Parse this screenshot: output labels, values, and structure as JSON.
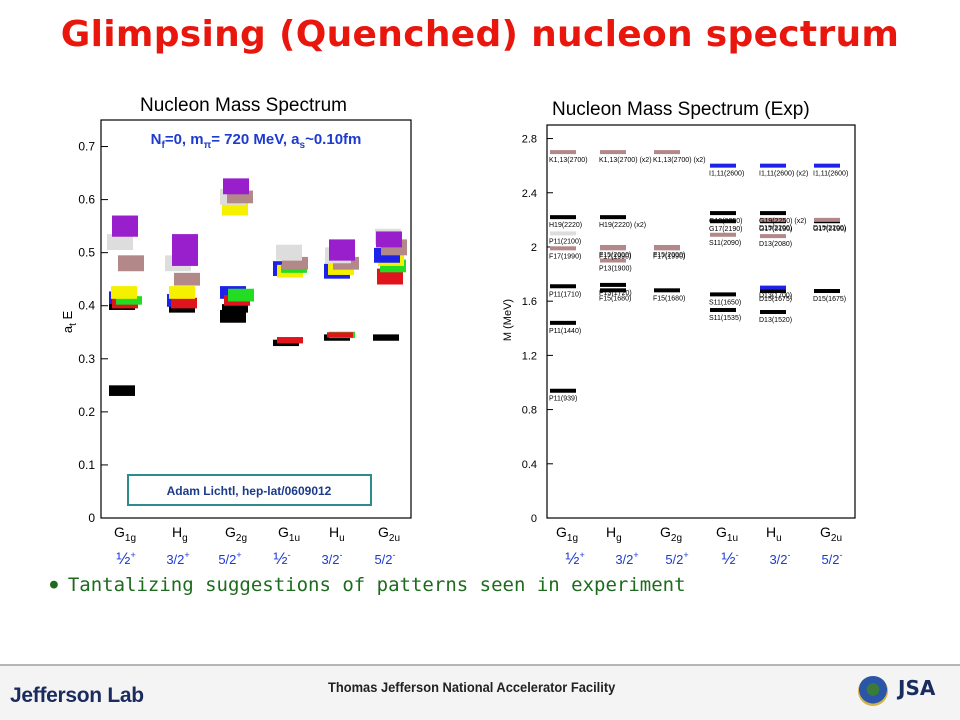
{
  "slide": {
    "title": "Glimpsing (Quenched) nucleon spectrum",
    "bullet": "Tantalizing suggestions of patterns seen in experiment"
  },
  "footer": {
    "lab_name": "Jefferson Lab",
    "facility_name": "Thomas Jefferson National Accelerator Facility",
    "logo_text": "JSA",
    "icons": [
      "doe-seal-icon",
      "jsa-logo-icon"
    ]
  },
  "spin_labels": [
    "½+",
    "3/2+",
    "5/2+",
    "½-",
    "3/2-",
    "5/2-"
  ],
  "chart_data": [
    {
      "type": "scatter",
      "title": "Nucleon Mass Spectrum",
      "subtitle": "Nf=0, mπ= 720 MeV, as~0.10fm",
      "ylabel": "at E",
      "xlabel": "",
      "ylim": [
        0,
        0.75
      ],
      "yticks": [
        0,
        0.1,
        0.2,
        0.3,
        0.4,
        0.5,
        0.6,
        0.7
      ],
      "ytick_labels": [
        "0",
        "0.1",
        "0.2",
        "0.3",
        "0.4",
        "0.5",
        "0.6",
        "0.7"
      ],
      "categories": [
        "G1g",
        "Hg",
        "G2g",
        "G1u",
        "Hu",
        "G2u"
      ],
      "annotation": "Adam Lichtl, hep-lat/0609012",
      "levels": [
        {
          "cat": 0,
          "y": 0.24,
          "color": "#000000",
          "dx": 0,
          "half": 0.01
        },
        {
          "cat": 0,
          "y": 0.4,
          "color": "#000000",
          "dx": 0,
          "half": 0.008
        },
        {
          "cat": 0,
          "y": 0.415,
          "color": "#1e22e8",
          "dx": 0,
          "half": 0.012
        },
        {
          "cat": 0,
          "y": 0.405,
          "color": "#e0141c",
          "dx": 0.15,
          "half": 0.01
        },
        {
          "cat": 0,
          "y": 0.41,
          "color": "#22dd22",
          "dx": 0.35,
          "half": 0.008
        },
        {
          "cat": 0,
          "y": 0.425,
          "color": "#f5f000",
          "dx": 0.1,
          "half": 0.012
        },
        {
          "cat": 0,
          "y": 0.48,
          "color": "#b38888",
          "dx": 0.45,
          "half": 0.015
        },
        {
          "cat": 0,
          "y": 0.52,
          "color": "#dddddd",
          "dx": -0.1,
          "half": 0.015
        },
        {
          "cat": 0,
          "y": 0.55,
          "color": "#9a1fcc",
          "dx": 0.15,
          "half": 0.02
        },
        {
          "cat": 1,
          "y": 0.395,
          "color": "#000000",
          "dx": 0.1,
          "half": 0.008
        },
        {
          "cat": 1,
          "y": 0.41,
          "color": "#1e22e8",
          "dx": 0,
          "half": 0.012
        },
        {
          "cat": 1,
          "y": 0.405,
          "color": "#e0141c",
          "dx": 0.2,
          "half": 0.01
        },
        {
          "cat": 1,
          "y": 0.425,
          "color": "#f5f000",
          "dx": 0.1,
          "half": 0.012
        },
        {
          "cat": 1,
          "y": 0.45,
          "color": "#b38888",
          "dx": 0.35,
          "half": 0.012
        },
        {
          "cat": 1,
          "y": 0.48,
          "color": "#dddddd",
          "dx": -0.1,
          "half": 0.015
        },
        {
          "cat": 1,
          "y": 0.505,
          "color": "#9a1fcc",
          "dx": 0.25,
          "half": 0.03
        },
        {
          "cat": 2,
          "y": 0.38,
          "color": "#000000",
          "dx": 0,
          "half": 0.012
        },
        {
          "cat": 2,
          "y": 0.395,
          "color": "#000000",
          "dx": 0.1,
          "half": 0.008
        },
        {
          "cat": 2,
          "y": 0.425,
          "color": "#1e22e8",
          "dx": 0,
          "half": 0.012
        },
        {
          "cat": 2,
          "y": 0.41,
          "color": "#e0141c",
          "dx": 0.2,
          "half": 0.01
        },
        {
          "cat": 2,
          "y": 0.42,
          "color": "#22dd22",
          "dx": 0.4,
          "half": 0.012
        },
        {
          "cat": 2,
          "y": 0.585,
          "color": "#f5f000",
          "dx": 0.1,
          "half": 0.015
        },
        {
          "cat": 2,
          "y": 0.605,
          "color": "#dddddd",
          "dx": 0,
          "half": 0.015
        },
        {
          "cat": 2,
          "y": 0.605,
          "color": "#b38888",
          "dx": 0.35,
          "half": 0.012
        },
        {
          "cat": 2,
          "y": 0.625,
          "color": "#9a1fcc",
          "dx": 0.15,
          "half": 0.015
        },
        {
          "cat": 3,
          "y": 0.33,
          "color": "#000000",
          "dx": 0,
          "half": 0.006
        },
        {
          "cat": 3,
          "y": 0.335,
          "color": "#e0141c",
          "dx": 0.2,
          "half": 0.006
        },
        {
          "cat": 3,
          "y": 0.47,
          "color": "#1e22e8",
          "dx": 0,
          "half": 0.014
        },
        {
          "cat": 3,
          "y": 0.465,
          "color": "#f5f000",
          "dx": 0.2,
          "half": 0.012
        },
        {
          "cat": 3,
          "y": 0.47,
          "color": "#22dd22",
          "dx": 0.4,
          "half": 0.008
        },
        {
          "cat": 3,
          "y": 0.48,
          "color": "#b38888",
          "dx": 0.45,
          "half": 0.012
        },
        {
          "cat": 3,
          "y": 0.5,
          "color": "#dddddd",
          "dx": 0.15,
          "half": 0.015
        },
        {
          "cat": 4,
          "y": 0.34,
          "color": "#000000",
          "dx": 0,
          "half": 0.006
        },
        {
          "cat": 4,
          "y": 0.345,
          "color": "#22dd22",
          "dx": 0.25,
          "half": 0.006
        },
        {
          "cat": 4,
          "y": 0.345,
          "color": "#e0141c",
          "dx": 0.15,
          "half": 0.005
        },
        {
          "cat": 4,
          "y": 0.465,
          "color": "#1e22e8",
          "dx": 0,
          "half": 0.014
        },
        {
          "cat": 4,
          "y": 0.47,
          "color": "#f5f000",
          "dx": 0.2,
          "half": 0.012
        },
        {
          "cat": 4,
          "y": 0.48,
          "color": "#b38888",
          "dx": 0.45,
          "half": 0.012
        },
        {
          "cat": 4,
          "y": 0.495,
          "color": "#dddddd",
          "dx": 0.05,
          "half": 0.015
        },
        {
          "cat": 4,
          "y": 0.505,
          "color": "#9a1fcc",
          "dx": 0.25,
          "half": 0.02
        },
        {
          "cat": 5,
          "y": 0.34,
          "color": "#000000",
          "dx": 0,
          "half": 0.006
        },
        {
          "cat": 5,
          "y": 0.455,
          "color": "#e0141c",
          "dx": 0.2,
          "half": 0.015
        },
        {
          "cat": 5,
          "y": 0.475,
          "color": "#22dd22",
          "dx": 0.35,
          "half": 0.012
        },
        {
          "cat": 5,
          "y": 0.49,
          "color": "#f5f000",
          "dx": 0.25,
          "half": 0.015
        },
        {
          "cat": 5,
          "y": 0.495,
          "color": "#1e22e8",
          "dx": 0.05,
          "half": 0.014
        },
        {
          "cat": 5,
          "y": 0.51,
          "color": "#b38888",
          "dx": 0.4,
          "half": 0.015
        },
        {
          "cat": 5,
          "y": 0.53,
          "color": "#dddddd",
          "dx": 0.1,
          "half": 0.015
        },
        {
          "cat": 5,
          "y": 0.525,
          "color": "#9a1fcc",
          "dx": 0.15,
          "half": 0.015
        }
      ]
    },
    {
      "type": "scatter",
      "title": "Nucleon Mass Spectrum (Exp)",
      "ylabel": "M (MeV)",
      "xlabel": "",
      "ylim": [
        0,
        2.9
      ],
      "yticks": [
        0,
        0.4,
        0.8,
        1.2,
        1.6,
        2,
        2.4,
        2.8
      ],
      "ytick_labels": [
        "0",
        "0.4",
        "0.8",
        "1.2",
        "1.6",
        "2",
        "2.4",
        "2.8"
      ],
      "categories": [
        "G1g",
        "Hg",
        "G2g",
        "G1u",
        "Hu",
        "G2u"
      ],
      "levels": [
        {
          "cat": 0,
          "y": 0.939,
          "color": "#000000",
          "label": "P11(939)"
        },
        {
          "cat": 0,
          "y": 1.44,
          "color": "#000000",
          "label": "P11(1440)"
        },
        {
          "cat": 0,
          "y": 1.71,
          "color": "#000000",
          "label": "P11(1710)"
        },
        {
          "cat": 0,
          "y": 1.99,
          "color": "#b38888",
          "label": "F17(1990)"
        },
        {
          "cat": 0,
          "y": 2.1,
          "color": "#dddddd",
          "label": "P11(2100)"
        },
        {
          "cat": 0,
          "y": 2.22,
          "color": "#000000",
          "label": "H19(2220)"
        },
        {
          "cat": 0,
          "y": 2.7,
          "color": "#b38888",
          "label": "K1,13(2700)"
        },
        {
          "cat": 1,
          "y": 1.68,
          "color": "#000000",
          "label": "F15(1680)"
        },
        {
          "cat": 1,
          "y": 1.72,
          "color": "#000000",
          "label": "P13(1720)"
        },
        {
          "cat": 1,
          "y": 1.9,
          "color": "#b38888",
          "label": "P13(1900)"
        },
        {
          "cat": 1,
          "y": 1.99,
          "color": "#b38888",
          "label": "F17(1990)"
        },
        {
          "cat": 1,
          "y": 2.0,
          "color": "#b38888",
          "label": "F15(2000)"
        },
        {
          "cat": 1,
          "y": 2.22,
          "color": "#000000",
          "label": "H19(2220) (x2)"
        },
        {
          "cat": 1,
          "y": 2.7,
          "color": "#b38888",
          "label": "K1,13(2700) (x2)"
        },
        {
          "cat": 2,
          "y": 1.68,
          "color": "#000000",
          "label": "F15(1680)"
        },
        {
          "cat": 2,
          "y": 1.99,
          "color": "#b38888",
          "label": "F17(1990)"
        },
        {
          "cat": 2,
          "y": 2.0,
          "color": "#b38888",
          "label": "F15(2000)"
        },
        {
          "cat": 2,
          "y": 2.7,
          "color": "#b38888",
          "label": "K1,13(2700) (x2)"
        },
        {
          "cat": 3,
          "y": 1.535,
          "color": "#000000",
          "label": "S11(1535)"
        },
        {
          "cat": 3,
          "y": 1.65,
          "color": "#000000",
          "label": "S11(1650)"
        },
        {
          "cat": 3,
          "y": 2.09,
          "color": "#b38888",
          "label": "S11(2090)"
        },
        {
          "cat": 3,
          "y": 2.19,
          "color": "#000000",
          "label": "G17(2190)"
        },
        {
          "cat": 3,
          "y": 2.25,
          "color": "#000000",
          "label": "G19(2250)"
        },
        {
          "cat": 3,
          "y": 2.6,
          "color": "#1e22e8",
          "label": "I1,11(2600)"
        },
        {
          "cat": 4,
          "y": 1.52,
          "color": "#000000",
          "label": "D13(1520)"
        },
        {
          "cat": 4,
          "y": 1.675,
          "color": "#000000",
          "label": "D15(1675)"
        },
        {
          "cat": 4,
          "y": 1.7,
          "color": "#1e22e8",
          "label": "D13(1700)"
        },
        {
          "cat": 4,
          "y": 2.08,
          "color": "#b38888",
          "label": "D13(2080)"
        },
        {
          "cat": 4,
          "y": 2.19,
          "color": "#000000",
          "label": "G17(2190)"
        },
        {
          "cat": 4,
          "y": 2.2,
          "color": "#b38888",
          "label": "D15(2200)"
        },
        {
          "cat": 4,
          "y": 2.25,
          "color": "#000000",
          "label": "G19(2250) (x2)"
        },
        {
          "cat": 4,
          "y": 2.6,
          "color": "#1e22e8",
          "label": "I1,11(2600) (x2)"
        },
        {
          "cat": 5,
          "y": 1.675,
          "color": "#000000",
          "label": "D15(1675)"
        },
        {
          "cat": 5,
          "y": 2.19,
          "color": "#000000",
          "label": "G17(2190)"
        },
        {
          "cat": 5,
          "y": 2.2,
          "color": "#b38888",
          "label": "D15(2200)"
        },
        {
          "cat": 5,
          "y": 2.6,
          "color": "#1e22e8",
          "label": "I1,11(2600)"
        }
      ]
    }
  ]
}
